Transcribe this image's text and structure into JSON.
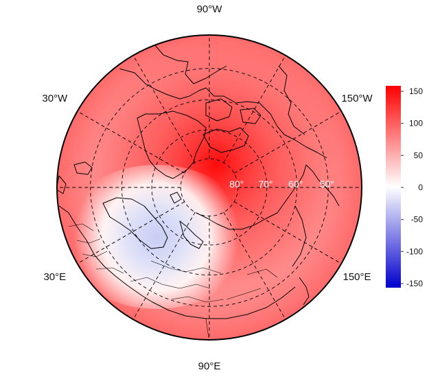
{
  "map": {
    "projection": "north polar stereographic",
    "longitude_labels": [
      {
        "text": "90°W",
        "lon": -90
      },
      {
        "text": "150°W",
        "lon": -150
      },
      {
        "text": "30°W",
        "lon": -30
      },
      {
        "text": "30°E",
        "lon": 30
      },
      {
        "text": "150°E",
        "lon": 150
      },
      {
        "text": "90°E",
        "lon": 90
      }
    ],
    "latitude_labels": [
      {
        "text": "80°",
        "lat": 80
      },
      {
        "text": "70°",
        "lat": 70
      },
      {
        "text": "60°",
        "lat": 60
      },
      {
        "text": "50°",
        "lat": 50
      }
    ],
    "graticule": {
      "latitudes": [
        80,
        70,
        60,
        50,
        40
      ],
      "longitude_step": 30,
      "style": "dashed"
    },
    "field": {
      "description": "anomaly field",
      "maximum_region": "central Arctic / Canadian Archipelago",
      "minimum_region": "Scandinavia / western Russia",
      "max_value": 150,
      "min_value": -30
    },
    "colors": {
      "negative": "#0000cc",
      "neutral": "#ffffff",
      "positive": "#ff0000",
      "coastline": "#000000"
    }
  },
  "colorbar": {
    "min": -150,
    "max": 150,
    "ticks": [
      "150",
      "100",
      "50",
      "0",
      "-50",
      "-100",
      "-150"
    ],
    "colors": [
      "#0000cc",
      "#ffffff",
      "#ff0000"
    ]
  }
}
